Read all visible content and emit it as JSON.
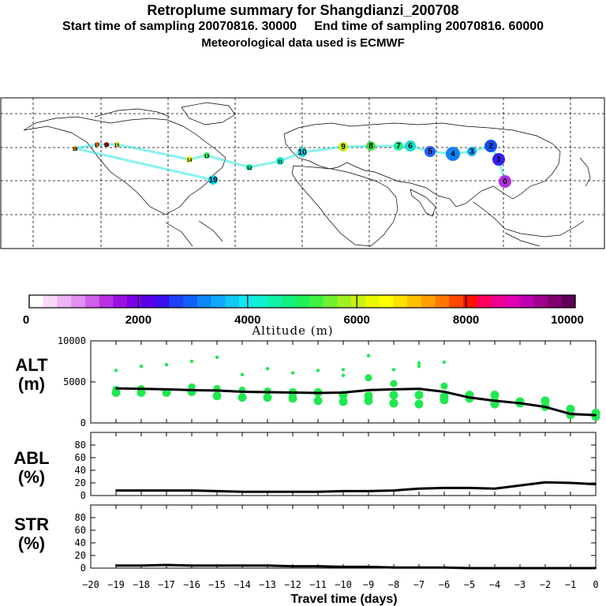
{
  "header": {
    "title": "Retroplume summary for Shangdianzi_200708",
    "line2_start": "Start time of sampling 20070816. 30000",
    "line2_end": "End time of sampling 20070816. 60000",
    "line3": "Meteorological data used is ECMWF"
  },
  "colorbar": {
    "label": "Altitude (m)",
    "ticks": [
      0,
      2000,
      4000,
      6000,
      8000,
      10000
    ],
    "range": [
      0,
      10000
    ],
    "colors": [
      "#ffffff",
      "#f6d8f8",
      "#eab6f2",
      "#e090ee",
      "#d060e8",
      "#b830e0",
      "#9a10e0",
      "#7c00e8",
      "#5a00e8",
      "#3c10f0",
      "#2040f8",
      "#1060f8",
      "#0c88f8",
      "#10a8f8",
      "#10c8f0",
      "#10e8f0",
      "#10f0d0",
      "#10f0a8",
      "#10f080",
      "#20f058",
      "#40f040",
      "#70f030",
      "#a0f020",
      "#c8f010",
      "#e8f800",
      "#ffff00",
      "#ffe000",
      "#ffc000",
      "#ffa000",
      "#ff7800",
      "#ff4800",
      "#ff1000",
      "#ff0060",
      "#f00090",
      "#e000b0",
      "#c000b0",
      "#a00090",
      "#800070",
      "#600058"
    ]
  },
  "chart_data": [
    {
      "type": "line",
      "name": "ALT",
      "ylabel": "ALT\n(m)",
      "ylim": [
        0,
        10000
      ],
      "yticks": [
        0,
        5000,
        10000
      ],
      "x": [
        -19,
        -18,
        -17,
        -16,
        -15,
        -14,
        -13,
        -12,
        -11,
        -10,
        -9,
        -8,
        -7,
        -6,
        -5,
        -4,
        -3,
        -2,
        -1,
        0
      ],
      "values": [
        4200,
        4150,
        4100,
        4000,
        3950,
        3800,
        3750,
        3700,
        3650,
        3700,
        4000,
        4100,
        4150,
        3800,
        3100,
        2700,
        2400,
        1950,
        1100,
        950
      ],
      "scatter": [
        [
          -19,
          6400
        ],
        [
          -19,
          4100
        ],
        [
          -19,
          3700
        ],
        [
          -18,
          6900
        ],
        [
          -18,
          4200
        ],
        [
          -18,
          3700
        ],
        [
          -17,
          7100
        ],
        [
          -17,
          3700
        ],
        [
          -16,
          7500
        ],
        [
          -16,
          4400
        ],
        [
          -16,
          3800
        ],
        [
          -15,
          8000
        ],
        [
          -15,
          4200
        ],
        [
          -15,
          3300
        ],
        [
          -14,
          5900
        ],
        [
          -14,
          4000
        ],
        [
          -14,
          3100
        ],
        [
          -13,
          6600
        ],
        [
          -13,
          3900
        ],
        [
          -13,
          3100
        ],
        [
          -12,
          6100
        ],
        [
          -12,
          3700
        ],
        [
          -12,
          3000
        ],
        [
          -11,
          6400
        ],
        [
          -11,
          3700
        ],
        [
          -11,
          2700
        ],
        [
          -10,
          6500
        ],
        [
          -10,
          5800
        ],
        [
          -10,
          3400
        ],
        [
          -10,
          2600
        ],
        [
          -9,
          8200
        ],
        [
          -9,
          5500
        ],
        [
          -9,
          3300
        ],
        [
          -9,
          2700
        ],
        [
          -8,
          6500
        ],
        [
          -8,
          4800
        ],
        [
          -8,
          3400
        ],
        [
          -8,
          2400
        ],
        [
          -7,
          7300
        ],
        [
          -7,
          6900
        ],
        [
          -7,
          3400
        ],
        [
          -7,
          2300
        ],
        [
          -6,
          7400
        ],
        [
          -6,
          4500
        ],
        [
          -6,
          3200
        ],
        [
          -6,
          2800
        ],
        [
          -5,
          3400
        ],
        [
          -5,
          3000
        ],
        [
          -4,
          3400
        ],
        [
          -4,
          2600
        ],
        [
          -4,
          2300
        ],
        [
          -3,
          2600
        ],
        [
          -3,
          2400
        ],
        [
          -2,
          2700
        ],
        [
          -2,
          2000
        ],
        [
          -1,
          1700
        ],
        [
          -1,
          1000
        ],
        [
          0,
          1200
        ],
        [
          0,
          800
        ]
      ]
    },
    {
      "type": "line",
      "name": "ABL",
      "ylabel": "ABL\n(%)",
      "ylim": [
        0,
        100
      ],
      "yticks": [
        0,
        20,
        40,
        60,
        80
      ],
      "x": [
        -19,
        -18,
        -17,
        -16,
        -15,
        -14,
        -13,
        -12,
        -11,
        -10,
        -9,
        -8,
        -7,
        -6,
        -5,
        -4,
        -3,
        -2,
        -1,
        0
      ],
      "values": [
        8,
        8,
        8,
        8,
        7,
        6,
        6,
        6,
        6,
        7,
        7,
        8,
        11,
        12,
        12,
        11,
        16,
        21,
        20,
        18
      ]
    },
    {
      "type": "line",
      "name": "STR",
      "ylabel": "STR\n(%)",
      "ylim": [
        0,
        100
      ],
      "yticks": [
        0,
        20,
        40,
        60,
        80
      ],
      "x": [
        -19,
        -18,
        -17,
        -16,
        -15,
        -14,
        -13,
        -12,
        -11,
        -10,
        -9,
        -8,
        -7,
        -6,
        -5,
        -4,
        -3,
        -2,
        -1,
        0
      ],
      "values": [
        4,
        4,
        5,
        4,
        4,
        4,
        4,
        3,
        3,
        2,
        2,
        1,
        1,
        1,
        0,
        0,
        0,
        0,
        0,
        0
      ]
    }
  ],
  "xaxis": {
    "label": "Travel time (days)",
    "range": [
      -20,
      0
    ],
    "ticks": [
      -20,
      -19,
      -18,
      -17,
      -16,
      -15,
      -14,
      -13,
      -12,
      -11,
      -10,
      -9,
      -8,
      -7,
      -6,
      -5,
      -4,
      -3,
      -2,
      -1,
      0
    ]
  },
  "map": {
    "markers": [
      {
        "label": "19",
        "color": "#10d0f0"
      },
      {
        "label": "18",
        "color": "#ff9000"
      },
      {
        "label": "17",
        "color": "#ff7000"
      },
      {
        "label": "16",
        "color": "#c01010"
      },
      {
        "label": "15",
        "color": "#e8f800"
      },
      {
        "label": "14",
        "color": "#e8f000"
      },
      {
        "label": "13",
        "color": "#30f060"
      },
      {
        "label": "12",
        "color": "#10f0a0"
      },
      {
        "label": "11",
        "color": "#10e8c0"
      },
      {
        "label": "10",
        "color": "#10d8e8"
      },
      {
        "label": "9",
        "color": "#c8f010"
      },
      {
        "label": "8",
        "color": "#40e040"
      },
      {
        "label": "7",
        "color": "#20f090"
      },
      {
        "label": "6",
        "color": "#10e0d0"
      },
      {
        "label": "5",
        "color": "#2060f8"
      },
      {
        "label": "4",
        "color": "#1080f8"
      },
      {
        "label": "3",
        "color": "#10a8f8"
      },
      {
        "label": "2",
        "color": "#1050f0"
      },
      {
        "label": "1",
        "color": "#3020f0"
      },
      {
        "label": "0",
        "color": "#b030e0"
      }
    ]
  }
}
